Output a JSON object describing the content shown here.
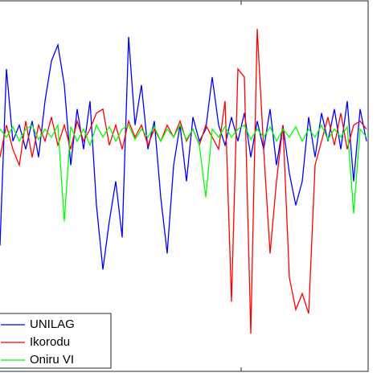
{
  "chart_data": {
    "type": "line",
    "x": [
      0,
      8,
      16,
      24,
      32,
      40,
      48,
      56,
      64,
      72,
      80,
      88,
      96,
      104,
      112,
      120,
      128,
      136,
      144,
      152,
      160,
      168,
      176,
      184,
      192,
      200,
      208,
      216,
      224,
      232,
      240,
      248,
      256,
      264,
      272,
      280,
      288,
      296,
      304,
      312,
      320,
      328,
      336,
      344,
      352,
      360,
      368,
      376,
      384,
      392,
      400,
      408,
      416,
      424,
      432,
      440,
      448,
      456
    ],
    "series": [
      {
        "name": "UNILAG",
        "color": "#0000ff",
        "values": [
          -140,
          80,
          -10,
          10,
          -20,
          15,
          -30,
          40,
          90,
          110,
          60,
          -40,
          30,
          -20,
          40,
          -90,
          -170,
          -110,
          -60,
          -130,
          120,
          10,
          60,
          -20,
          15,
          -80,
          -150,
          -40,
          10,
          -60,
          20,
          -10,
          5,
          70,
          10,
          -15,
          20,
          -10,
          25,
          -30,
          15,
          -20,
          30,
          -40,
          10,
          -50,
          -90,
          -60,
          20,
          -30,
          25,
          -10,
          30,
          -20,
          40,
          -60,
          30,
          -10
        ]
      },
      {
        "name": "Ikorodu",
        "color": "#ff0000",
        "values": [
          -30,
          10,
          -20,
          -40,
          15,
          -30,
          10,
          -10,
          20,
          -15,
          10,
          -20,
          15,
          -10,
          5,
          25,
          30,
          -15,
          10,
          -20,
          15,
          -5,
          10,
          -15,
          5,
          -10,
          10,
          -5,
          15,
          -10,
          5,
          -15,
          10,
          -5,
          -20,
          40,
          -210,
          80,
          70,
          -250,
          130,
          -20,
          -150,
          -60,
          10,
          -180,
          -220,
          -200,
          -225,
          -40,
          -10,
          20,
          -15,
          25,
          -20,
          10,
          15,
          5
        ]
      },
      {
        "name": "Oniru VI",
        "color": "#00ff00",
        "values": [
          5,
          -5,
          8,
          -10,
          5,
          10,
          -8,
          5,
          -5,
          10,
          -110,
          8,
          -10,
          5,
          -15,
          10,
          -5,
          8,
          -10,
          5,
          10,
          -8,
          5,
          -5,
          8,
          -10,
          5,
          -5,
          10,
          -8,
          5,
          -15,
          -80,
          5,
          -5,
          8,
          -5,
          5,
          10,
          -8,
          5,
          -5,
          8,
          -10,
          5,
          -5,
          8,
          -10,
          5,
          -5,
          10,
          -8,
          5,
          -5,
          8,
          -100,
          5,
          -5
        ]
      }
    ],
    "xlim": [
      0,
      458
    ],
    "ylim": [
      -297,
      165
    ],
    "xticks": [
      300
    ],
    "grid": false,
    "legend": "lower left"
  }
}
